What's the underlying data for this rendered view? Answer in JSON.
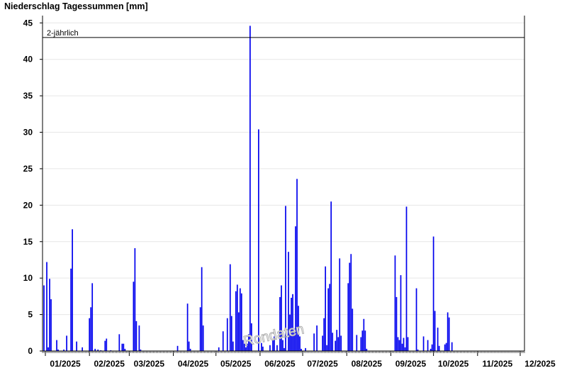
{
  "chart_data": {
    "type": "bar",
    "title": "Niederschlag Tagessummen [mm]",
    "ylim": [
      0,
      46
    ],
    "yticks": [
      0,
      5,
      10,
      15,
      20,
      25,
      30,
      35,
      40,
      45
    ],
    "grid": "horizontal",
    "bar_color": "#0000ee",
    "xlim": [
      "2024-12-30",
      "2025-12-04"
    ],
    "xticks": [
      {
        "date": "2025-01-01",
        "label": "01/2025"
      },
      {
        "date": "2025-02-01",
        "label": "02/2025"
      },
      {
        "date": "2025-03-01",
        "label": "03/2025"
      },
      {
        "date": "2025-04-01",
        "label": "04/2025"
      },
      {
        "date": "2025-05-01",
        "label": "05/2025"
      },
      {
        "date": "2025-06-01",
        "label": "06/2025"
      },
      {
        "date": "2025-07-01",
        "label": "07/2025"
      },
      {
        "date": "2025-08-01",
        "label": "08/2025"
      },
      {
        "date": "2025-09-01",
        "label": "09/2025"
      },
      {
        "date": "2025-10-01",
        "label": "10/2025"
      },
      {
        "date": "2025-11-01",
        "label": "11/2025"
      },
      {
        "date": "2025-12-01",
        "label": "12/2025"
      }
    ],
    "reference_line": {
      "value": 43,
      "label": "2-jährlich"
    },
    "watermark": "Rondaten",
    "series": [
      {
        "values": [
          [
            "2024-12-31",
            9.0
          ],
          [
            "2025-01-02",
            12.2
          ],
          [
            "2025-01-03",
            0.5
          ],
          [
            "2025-01-04",
            9.9
          ],
          [
            "2025-01-05",
            7.1
          ],
          [
            "2025-01-09",
            1.5
          ],
          [
            "2025-01-10",
            0.2
          ],
          [
            "2025-01-14",
            0.2
          ],
          [
            "2025-01-16",
            2.1
          ],
          [
            "2025-01-19",
            11.3
          ],
          [
            "2025-01-20",
            16.7
          ],
          [
            "2025-01-23",
            1.3
          ],
          [
            "2025-01-27",
            0.5
          ],
          [
            "2025-02-01",
            4.5
          ],
          [
            "2025-02-02",
            6.0
          ],
          [
            "2025-02-03",
            9.3
          ],
          [
            "2025-02-05",
            0.3
          ],
          [
            "2025-02-07",
            0.2
          ],
          [
            "2025-02-09",
            0.1
          ],
          [
            "2025-02-12",
            1.4
          ],
          [
            "2025-02-13",
            1.7
          ],
          [
            "2025-02-16",
            0.1
          ],
          [
            "2025-02-22",
            2.3
          ],
          [
            "2025-02-24",
            1.0
          ],
          [
            "2025-02-25",
            1.0
          ],
          [
            "2025-02-26",
            0.3
          ],
          [
            "2025-03-04",
            9.5
          ],
          [
            "2025-03-05",
            14.1
          ],
          [
            "2025-03-06",
            4.1
          ],
          [
            "2025-03-08",
            3.5
          ],
          [
            "2025-03-09",
            0.2
          ],
          [
            "2025-04-04",
            0.7
          ],
          [
            "2025-04-11",
            6.5
          ],
          [
            "2025-04-12",
            1.3
          ],
          [
            "2025-04-13",
            0.3
          ],
          [
            "2025-04-20",
            6.0
          ],
          [
            "2025-04-21",
            11.5
          ],
          [
            "2025-04-22",
            3.5
          ],
          [
            "2025-05-03",
            0.5
          ],
          [
            "2025-05-06",
            2.7
          ],
          [
            "2025-05-09",
            4.5
          ],
          [
            "2025-05-11",
            11.9
          ],
          [
            "2025-05-12",
            4.8
          ],
          [
            "2025-05-13",
            1.3
          ],
          [
            "2025-05-15",
            8.2
          ],
          [
            "2025-05-16",
            9.1
          ],
          [
            "2025-05-17",
            5.3
          ],
          [
            "2025-05-18",
            8.6
          ],
          [
            "2025-05-19",
            7.9
          ],
          [
            "2025-05-20",
            1.5
          ],
          [
            "2025-05-21",
            1.0
          ],
          [
            "2025-05-22",
            0.5
          ],
          [
            "2025-05-23",
            1.0
          ],
          [
            "2025-05-24",
            2.3
          ],
          [
            "2025-05-25",
            44.6
          ],
          [
            "2025-05-26",
            3.8
          ],
          [
            "2025-05-31",
            30.4
          ],
          [
            "2025-06-02",
            1.1
          ],
          [
            "2025-06-03",
            0.6
          ],
          [
            "2025-06-08",
            0.8
          ],
          [
            "2025-06-10",
            1.5
          ],
          [
            "2025-06-11",
            2.0
          ],
          [
            "2025-06-13",
            0.8
          ],
          [
            "2025-06-15",
            7.4
          ],
          [
            "2025-06-16",
            9.0
          ],
          [
            "2025-06-17",
            1.5
          ],
          [
            "2025-06-18",
            0.4
          ],
          [
            "2025-06-19",
            19.9
          ],
          [
            "2025-06-21",
            13.6
          ],
          [
            "2025-06-22",
            5.0
          ],
          [
            "2025-06-23",
            7.3
          ],
          [
            "2025-06-24",
            7.8
          ],
          [
            "2025-06-25",
            2.5
          ],
          [
            "2025-06-26",
            17.1
          ],
          [
            "2025-06-27",
            23.6
          ],
          [
            "2025-06-28",
            6.2
          ],
          [
            "2025-06-29",
            2.0
          ],
          [
            "2025-06-30",
            0.3
          ],
          [
            "2025-07-03",
            0.4
          ],
          [
            "2025-07-09",
            2.4
          ],
          [
            "2025-07-11",
            3.5
          ],
          [
            "2025-07-15",
            2.1
          ],
          [
            "2025-07-16",
            4.5
          ],
          [
            "2025-07-17",
            11.6
          ],
          [
            "2025-07-18",
            0.8
          ],
          [
            "2025-07-19",
            8.6
          ],
          [
            "2025-07-20",
            9.2
          ],
          [
            "2025-07-21",
            20.5
          ],
          [
            "2025-07-22",
            2.5
          ],
          [
            "2025-07-24",
            1.4
          ],
          [
            "2025-07-25",
            2.9
          ],
          [
            "2025-07-26",
            1.9
          ],
          [
            "2025-07-27",
            12.7
          ],
          [
            "2025-07-28",
            2.1
          ],
          [
            "2025-08-02",
            9.3
          ],
          [
            "2025-08-03",
            12.1
          ],
          [
            "2025-08-04",
            13.3
          ],
          [
            "2025-08-05",
            5.8
          ],
          [
            "2025-08-08",
            2.2
          ],
          [
            "2025-08-11",
            1.9
          ],
          [
            "2025-08-12",
            2.8
          ],
          [
            "2025-08-13",
            4.4
          ],
          [
            "2025-08-14",
            2.8
          ],
          [
            "2025-08-15",
            0.3
          ],
          [
            "2025-09-04",
            13.1
          ],
          [
            "2025-09-05",
            7.4
          ],
          [
            "2025-09-06",
            1.9
          ],
          [
            "2025-09-07",
            1.5
          ],
          [
            "2025-09-08",
            10.4
          ],
          [
            "2025-09-09",
            1.0
          ],
          [
            "2025-09-10",
            1.8
          ],
          [
            "2025-09-11",
            0.5
          ],
          [
            "2025-09-12",
            19.8
          ],
          [
            "2025-09-13",
            1.9
          ],
          [
            "2025-09-19",
            8.6
          ],
          [
            "2025-09-20",
            0.2
          ],
          [
            "2025-09-24",
            2.0
          ],
          [
            "2025-09-27",
            1.5
          ],
          [
            "2025-09-29",
            0.3
          ],
          [
            "2025-09-30",
            0.9
          ],
          [
            "2025-10-01",
            15.7
          ],
          [
            "2025-10-02",
            5.5
          ],
          [
            "2025-10-04",
            3.2
          ],
          [
            "2025-10-05",
            0.7
          ],
          [
            "2025-10-09",
            0.9
          ],
          [
            "2025-10-10",
            1.1
          ],
          [
            "2025-10-11",
            5.3
          ],
          [
            "2025-10-12",
            4.6
          ],
          [
            "2025-10-14",
            1.2
          ]
        ]
      }
    ]
  }
}
